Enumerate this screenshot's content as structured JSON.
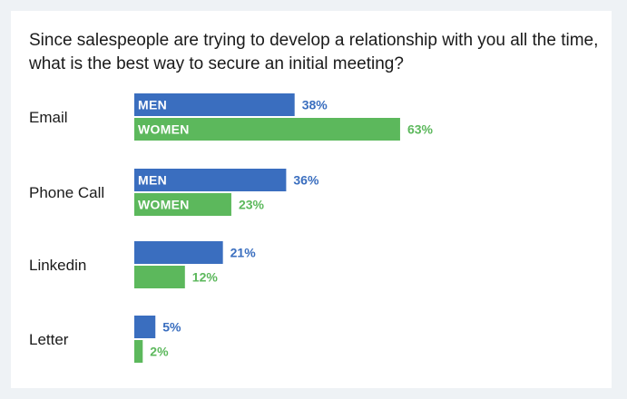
{
  "chart_data": {
    "type": "bar",
    "orientation": "horizontal",
    "title": "Since salespeople are trying to develop a relationship with you all the time, what is the best way to secure an initial meeting?",
    "categories": [
      "Email",
      "Phone Call",
      "Linkedin",
      "Letter"
    ],
    "series": [
      {
        "name": "MEN",
        "values": [
          38,
          36,
          21,
          5
        ],
        "color": "#3a6ebf"
      },
      {
        "name": "WOMEN",
        "values": [
          63,
          23,
          12,
          2
        ],
        "color": "#5cb85c"
      }
    ],
    "value_suffix": "%",
    "inline_series_labels_for_categories": [
      "Email",
      "Phone Call"
    ],
    "xlim": [
      0,
      100
    ],
    "grid": false,
    "legend": "none"
  }
}
